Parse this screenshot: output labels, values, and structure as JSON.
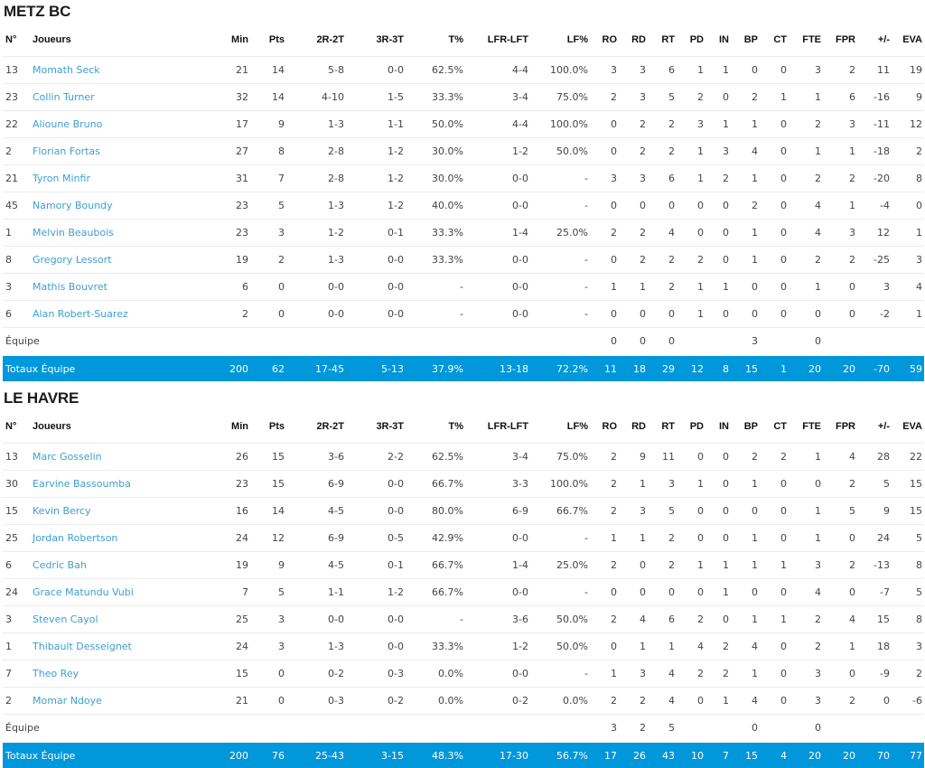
{
  "columns": [
    "N°",
    "Joueurs",
    "Min",
    "Pts",
    "2R-2T",
    "3R-3T",
    "T%",
    "LFR-LFT",
    "LF%",
    "RO",
    "RD",
    "RT",
    "PD",
    "IN",
    "BP",
    "CT",
    "FTE",
    "FPR",
    "+/-",
    "EVA"
  ],
  "teams": [
    {
      "name": "METZ BC",
      "players": [
        [
          "13",
          "Momath Seck",
          "21",
          "14",
          "5-8",
          "0-0",
          "62.5%",
          "4-4",
          "100.0%",
          "3",
          "3",
          "6",
          "1",
          "1",
          "0",
          "0",
          "3",
          "2",
          "11",
          "19"
        ],
        [
          "23",
          "Collin Turner",
          "32",
          "14",
          "4-10",
          "1-5",
          "33.3%",
          "3-4",
          "75.0%",
          "2",
          "3",
          "5",
          "2",
          "0",
          "2",
          "1",
          "1",
          "6",
          "-16",
          "9"
        ],
        [
          "22",
          "Alioune Bruno",
          "17",
          "9",
          "1-3",
          "1-1",
          "50.0%",
          "4-4",
          "100.0%",
          "0",
          "2",
          "2",
          "3",
          "1",
          "1",
          "0",
          "2",
          "3",
          "-11",
          "12"
        ],
        [
          "2",
          "Florian Fortas",
          "27",
          "8",
          "2-8",
          "1-2",
          "30.0%",
          "1-2",
          "50.0%",
          "0",
          "2",
          "2",
          "1",
          "3",
          "4",
          "0",
          "1",
          "1",
          "-18",
          "2"
        ],
        [
          "21",
          "Tyron Minfir",
          "31",
          "7",
          "2-8",
          "1-2",
          "30.0%",
          "0-0",
          "-",
          "3",
          "3",
          "6",
          "1",
          "2",
          "1",
          "0",
          "2",
          "2",
          "-20",
          "8"
        ],
        [
          "45",
          "Namory Boundy",
          "23",
          "5",
          "1-3",
          "1-2",
          "40.0%",
          "0-0",
          "-",
          "0",
          "0",
          "0",
          "0",
          "0",
          "2",
          "0",
          "4",
          "1",
          "-4",
          "0"
        ],
        [
          "1",
          "Melvin Beaubois",
          "23",
          "3",
          "1-2",
          "0-1",
          "33.3%",
          "1-4",
          "25.0%",
          "2",
          "2",
          "4",
          "0",
          "0",
          "1",
          "0",
          "4",
          "3",
          "12",
          "1"
        ],
        [
          "8",
          "Gregory Lessort",
          "19",
          "2",
          "1-3",
          "0-0",
          "33.3%",
          "0-0",
          "-",
          "0",
          "2",
          "2",
          "2",
          "0",
          "1",
          "0",
          "2",
          "2",
          "-25",
          "3"
        ],
        [
          "3",
          "Mathis Bouvret",
          "6",
          "0",
          "0-0",
          "0-0",
          "-",
          "0-0",
          "-",
          "1",
          "1",
          "2",
          "1",
          "1",
          "0",
          "0",
          "1",
          "0",
          "3",
          "4"
        ],
        [
          "6",
          "Alan Robert-Suarez",
          "2",
          "0",
          "0-0",
          "0-0",
          "-",
          "0-0",
          "-",
          "0",
          "0",
          "0",
          "1",
          "0",
          "0",
          "0",
          "0",
          "0",
          "-2",
          "1"
        ]
      ],
      "team_row": [
        "Équipe",
        "",
        "",
        "",
        "",
        "",
        "",
        "",
        "0",
        "0",
        "0",
        "",
        "",
        "3",
        "",
        "0",
        "",
        "",
        ""
      ],
      "totals": [
        "Totaux Équipe",
        "200",
        "62",
        "17-45",
        "5-13",
        "37.9%",
        "13-18",
        "72.2%",
        "11",
        "18",
        "29",
        "12",
        "8",
        "15",
        "1",
        "20",
        "20",
        "-70",
        "59"
      ]
    },
    {
      "name": "LE HAVRE",
      "players": [
        [
          "13",
          "Marc Gosselin",
          "26",
          "15",
          "3-6",
          "2-2",
          "62.5%",
          "3-4",
          "75.0%",
          "2",
          "9",
          "11",
          "0",
          "0",
          "2",
          "2",
          "1",
          "4",
          "28",
          "22"
        ],
        [
          "30",
          "Earvine Bassoumba",
          "23",
          "15",
          "6-9",
          "0-0",
          "66.7%",
          "3-3",
          "100.0%",
          "2",
          "1",
          "3",
          "1",
          "0",
          "1",
          "0",
          "0",
          "2",
          "5",
          "15"
        ],
        [
          "15",
          "Kevin Bercy",
          "16",
          "14",
          "4-5",
          "0-0",
          "80.0%",
          "6-9",
          "66.7%",
          "2",
          "3",
          "5",
          "0",
          "0",
          "0",
          "0",
          "1",
          "5",
          "9",
          "15"
        ],
        [
          "25",
          "Jordan Robertson",
          "24",
          "12",
          "6-9",
          "0-5",
          "42.9%",
          "0-0",
          "-",
          "1",
          "1",
          "2",
          "0",
          "0",
          "1",
          "0",
          "1",
          "0",
          "24",
          "5"
        ],
        [
          "6",
          "Cedric Bah",
          "19",
          "9",
          "4-5",
          "0-1",
          "66.7%",
          "1-4",
          "25.0%",
          "2",
          "0",
          "2",
          "1",
          "1",
          "1",
          "1",
          "3",
          "2",
          "-13",
          "8"
        ],
        [
          "24",
          "Grace Matundu Vubi",
          "7",
          "5",
          "1-1",
          "1-2",
          "66.7%",
          "0-0",
          "-",
          "0",
          "0",
          "0",
          "0",
          "1",
          "0",
          "0",
          "4",
          "0",
          "-7",
          "5"
        ],
        [
          "3",
          "Steven Cayol",
          "25",
          "3",
          "0-0",
          "0-0",
          "-",
          "3-6",
          "50.0%",
          "2",
          "4",
          "6",
          "2",
          "0",
          "1",
          "1",
          "2",
          "4",
          "15",
          "8"
        ],
        [
          "1",
          "Thibault Desseignet",
          "24",
          "3",
          "1-3",
          "0-0",
          "33.3%",
          "1-2",
          "50.0%",
          "0",
          "1",
          "1",
          "4",
          "2",
          "4",
          "0",
          "2",
          "1",
          "18",
          "3"
        ],
        [
          "7",
          "Theo Rey",
          "15",
          "0",
          "0-2",
          "0-3",
          "0.0%",
          "0-0",
          "-",
          "1",
          "3",
          "4",
          "2",
          "2",
          "1",
          "0",
          "3",
          "0",
          "-9",
          "2"
        ],
        [
          "2",
          "Momar Ndoye",
          "21",
          "0",
          "0-3",
          "0-2",
          "0.0%",
          "0-2",
          "0.0%",
          "2",
          "2",
          "4",
          "0",
          "1",
          "4",
          "0",
          "3",
          "2",
          "0",
          "-6"
        ]
      ],
      "team_row": [
        "Équipe",
        "",
        "",
        "",
        "",
        "",
        "",
        "",
        "3",
        "2",
        "5",
        "",
        "",
        "0",
        "",
        "0",
        "",
        "",
        ""
      ],
      "totals": [
        "Totaux Équipe",
        "200",
        "76",
        "25-43",
        "3-15",
        "48.3%",
        "17-30",
        "56.7%",
        "17",
        "26",
        "43",
        "10",
        "7",
        "15",
        "4",
        "20",
        "20",
        "70",
        "77"
      ]
    }
  ],
  "colors": {
    "accent": "#0097db",
    "player_link": "#3c9fd2"
  }
}
